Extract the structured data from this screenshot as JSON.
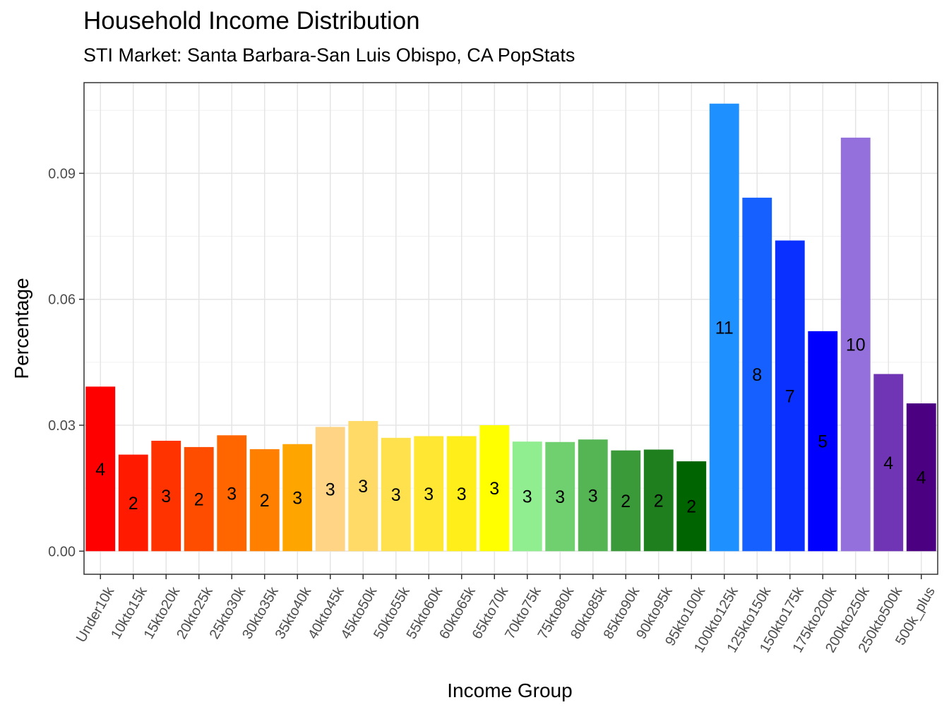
{
  "chart_data": {
    "type": "bar",
    "title": "Household Income Distribution",
    "subtitle": "STI Market: Santa Barbara-San Luis Obispo, CA PopStats",
    "xlabel": "Income Group",
    "ylabel": "Percentage",
    "ylim": [
      -0.0055,
      0.1116
    ],
    "yticks": [
      0.0,
      0.03,
      0.06,
      0.09
    ],
    "ytick_labels": [
      "0.00",
      "0.03",
      "0.06",
      "0.09"
    ],
    "grid": true,
    "categories": [
      "Under10k",
      "10kto15k",
      "15kto20k",
      "20kto25k",
      "25kto30k",
      "30kto35k",
      "35kto40k",
      "40kto45k",
      "45kto50k",
      "50kto55k",
      "55kto60k",
      "60kto65k",
      "65kto70k",
      "70kto75k",
      "75kto80k",
      "80kto85k",
      "85kto90k",
      "90kto95k",
      "95kto100k",
      "100kto125k",
      "125kto150k",
      "150kto175k",
      "175kto200k",
      "200kto250k",
      "250kto500k",
      "500k_plus"
    ],
    "values": [
      0.0392,
      0.023,
      0.0263,
      0.0248,
      0.0276,
      0.0243,
      0.0255,
      0.0296,
      0.031,
      0.027,
      0.0274,
      0.0274,
      0.03,
      0.0261,
      0.026,
      0.0266,
      0.024,
      0.0242,
      0.0214,
      0.1066,
      0.0842,
      0.074,
      0.0524,
      0.0985,
      0.0422,
      0.0352
    ],
    "labels": [
      "4",
      "2",
      "3",
      "2",
      "3",
      "2",
      "3",
      "3",
      "3",
      "3",
      "3",
      "3",
      "3",
      "3",
      "3",
      "3",
      "2",
      "2",
      "2",
      "11",
      "8",
      "7",
      "5",
      "10",
      "4",
      "4"
    ],
    "colors": [
      "#FF0000",
      "#FF1A00",
      "#FF3300",
      "#FF4D00",
      "#FF6600",
      "#FF8000",
      "#FFA500",
      "#FFD585",
      "#FFDA66",
      "#FFE14D",
      "#FFE733",
      "#FFEE1A",
      "#FFFF00",
      "#90EE90",
      "#70D070",
      "#55B555",
      "#3A9A3A",
      "#1F7F1F",
      "#006400",
      "#1E90FF",
      "#1560FF",
      "#0A30FF",
      "#0000FF",
      "#9370DB",
      "#7035B5",
      "#4B0082"
    ]
  }
}
